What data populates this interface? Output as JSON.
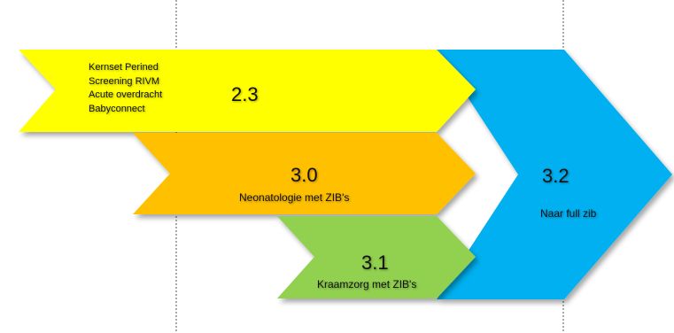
{
  "milestones": [
    {
      "id": "2.3",
      "version": "2.3",
      "items": [
        "Kernset Perined",
        "Screening RIVM",
        "Acute overdracht",
        "Babyconnect"
      ],
      "color": "#ffff00"
    },
    {
      "id": "3.0",
      "version": "3.0",
      "caption": "Neonatologie met ZIB's",
      "color": "#ffc000"
    },
    {
      "id": "3.1",
      "version": "3.1",
      "caption": "Kraamzorg met ZIB's",
      "color": "#92d050"
    },
    {
      "id": "3.2",
      "version": "3.2",
      "caption": "Naar full zib",
      "color": "#00b0f0"
    }
  ]
}
